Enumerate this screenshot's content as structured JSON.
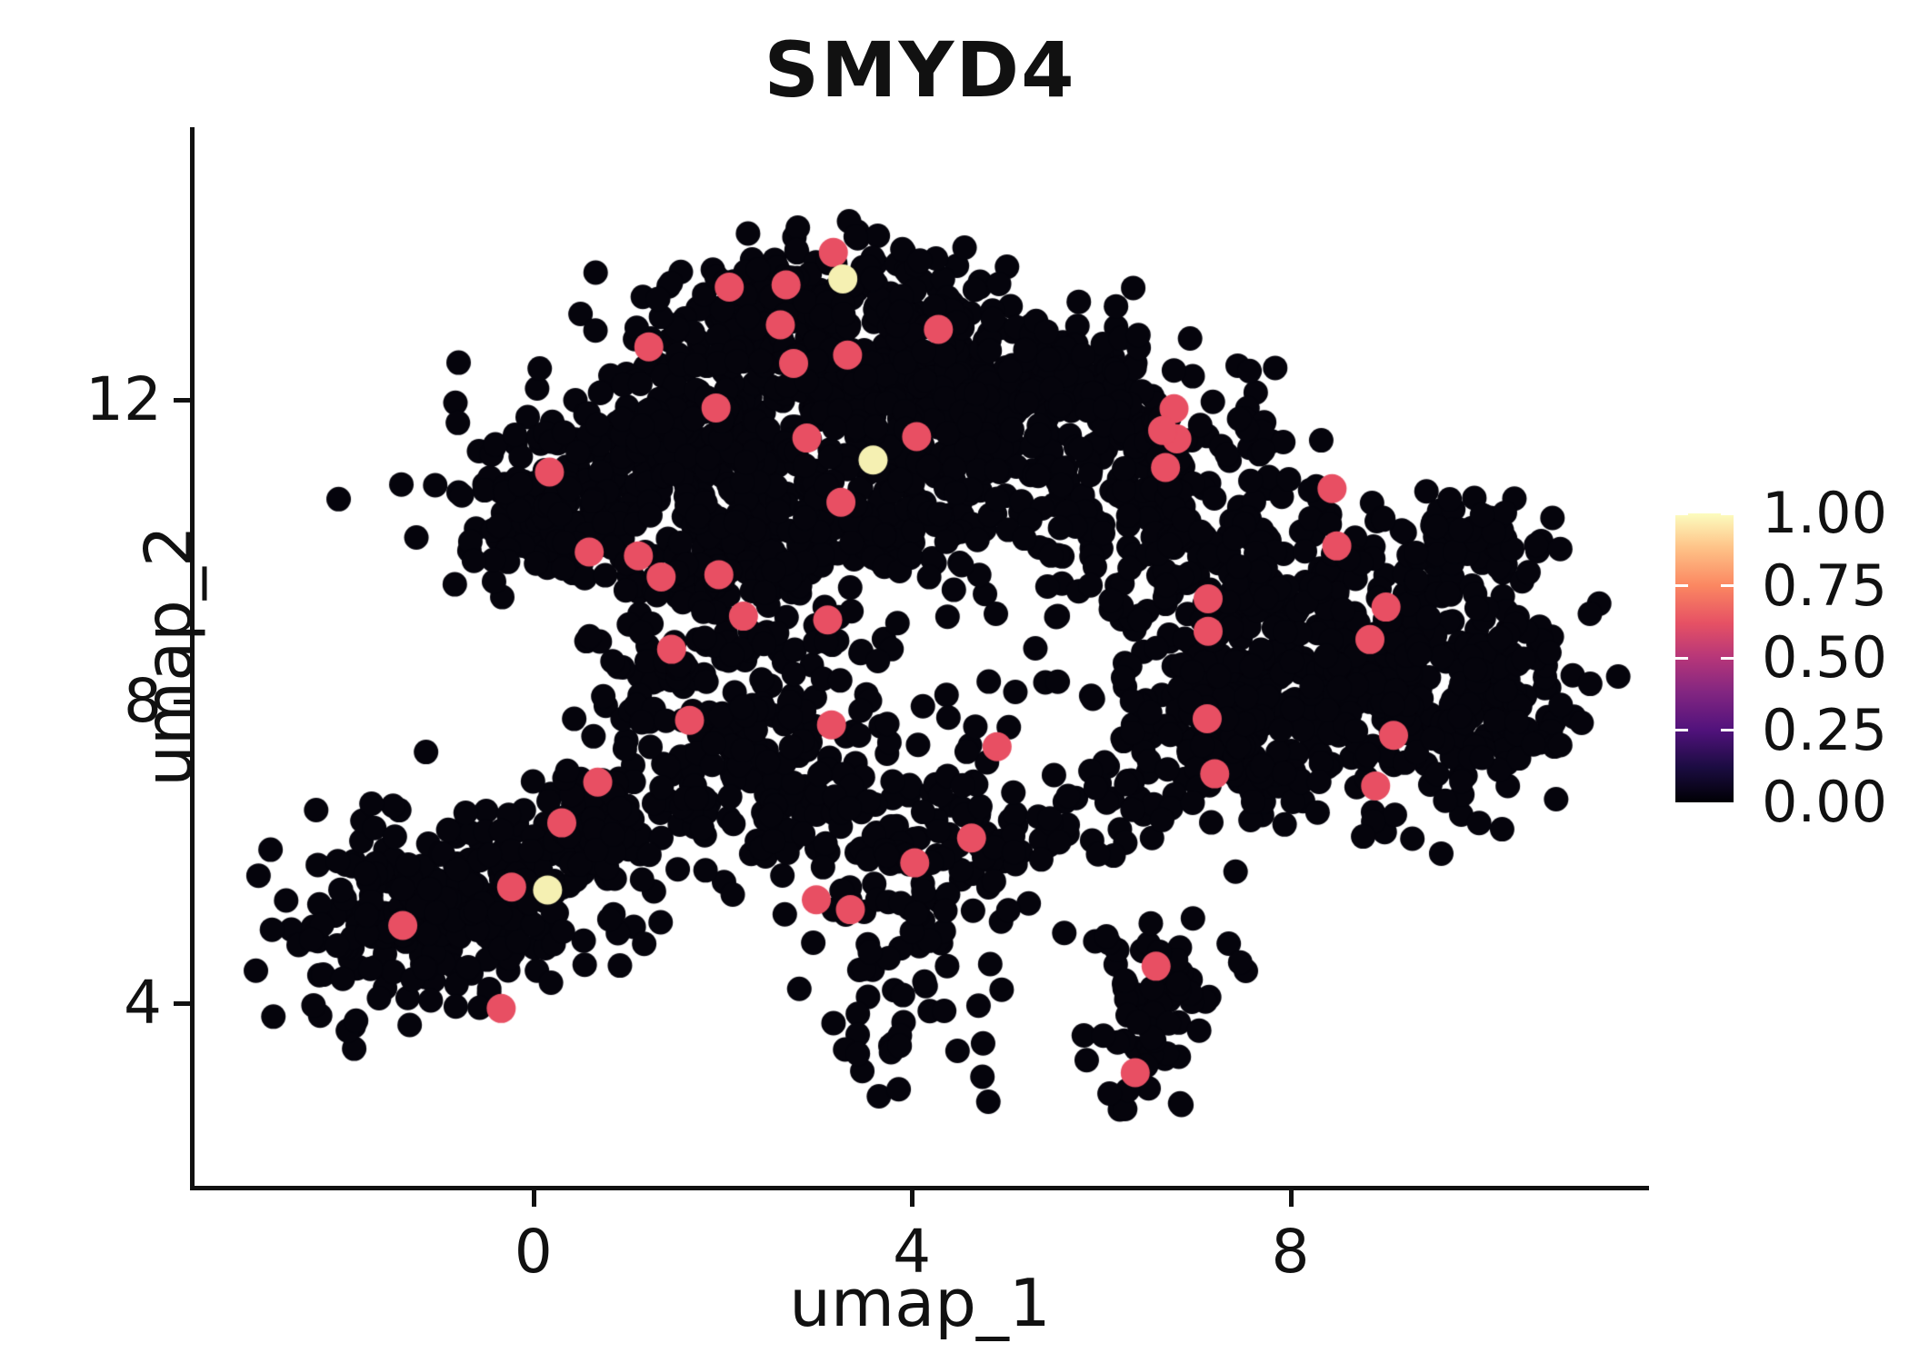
{
  "chart_data": {
    "type": "scatter",
    "title": "SMYD4",
    "xlabel": "umap_1",
    "ylabel": "umap_2",
    "x_ticks": [
      0,
      4,
      8
    ],
    "y_ticks": [
      4,
      8,
      12
    ],
    "x_range": [
      -3.6,
      11.77
    ],
    "y_range": [
      1.58,
      15.61
    ],
    "grid": false,
    "point_color_zero": "#05040c",
    "point_radius": 13.5,
    "highlight_radius": 16,
    "seed": 42,
    "clusters_note": "UMAP embedding of ~3000 cells; most cells have expression 0 (black). Clusters given as gaussian blobs: cx, cy, sx, sy, n.",
    "clusters": [
      {
        "cx": 3.0,
        "cy": 13.3,
        "sx": 0.85,
        "sy": 0.45,
        "n": 130
      },
      {
        "cx": 2.2,
        "cy": 12.2,
        "sx": 1.0,
        "sy": 0.75,
        "n": 190
      },
      {
        "cx": 3.9,
        "cy": 12.4,
        "sx": 0.9,
        "sy": 0.65,
        "n": 170
      },
      {
        "cx": 1.2,
        "cy": 11.2,
        "sx": 0.8,
        "sy": 0.65,
        "n": 150
      },
      {
        "cx": 0.1,
        "cy": 10.5,
        "sx": 0.5,
        "sy": 0.55,
        "n": 110
      },
      {
        "cx": 4.7,
        "cy": 11.5,
        "sx": 0.85,
        "sy": 0.85,
        "n": 200
      },
      {
        "cx": 6.0,
        "cy": 12.0,
        "sx": 0.7,
        "sy": 0.55,
        "n": 90
      },
      {
        "cx": 7.0,
        "cy": 11.3,
        "sx": 0.6,
        "sy": 0.7,
        "n": 40
      },
      {
        "cx": 2.0,
        "cy": 9.8,
        "sx": 0.75,
        "sy": 0.65,
        "n": 130
      },
      {
        "cx": 3.3,
        "cy": 10.4,
        "sx": 0.75,
        "sy": 0.75,
        "n": 130
      },
      {
        "cx": 1.8,
        "cy": 8.0,
        "sx": 0.55,
        "sy": 0.85,
        "n": 110
      },
      {
        "cx": 2.7,
        "cy": 6.9,
        "sx": 0.75,
        "sy": 0.75,
        "n": 110
      },
      {
        "cx": 4.2,
        "cy": 6.0,
        "sx": 0.65,
        "sy": 0.6,
        "n": 80
      },
      {
        "cx": 3.9,
        "cy": 3.9,
        "sx": 0.4,
        "sy": 0.65,
        "n": 40
      },
      {
        "cx": 5.6,
        "cy": 6.5,
        "sx": 0.75,
        "sy": 0.28,
        "n": 35
      },
      {
        "cx": 6.4,
        "cy": 10.5,
        "sx": 0.65,
        "sy": 0.65,
        "n": 55
      },
      {
        "cx": 7.6,
        "cy": 9.3,
        "sx": 0.95,
        "sy": 0.75,
        "n": 230
      },
      {
        "cx": 8.9,
        "cy": 8.2,
        "sx": 0.95,
        "sy": 0.85,
        "n": 270
      },
      {
        "cx": 7.3,
        "cy": 7.5,
        "sx": 0.65,
        "sy": 0.55,
        "n": 130
      },
      {
        "cx": 9.9,
        "cy": 10.15,
        "sx": 0.45,
        "sy": 0.3,
        "n": 60
      },
      {
        "cx": 10.2,
        "cy": 7.9,
        "sx": 0.45,
        "sy": 0.55,
        "n": 70
      },
      {
        "cx": -1.3,
        "cy": 5.0,
        "sx": 0.7,
        "sy": 0.6,
        "n": 180
      },
      {
        "cx": -0.1,
        "cy": 5.7,
        "sx": 0.65,
        "sy": 0.55,
        "n": 130
      },
      {
        "cx": 0.8,
        "cy": 6.4,
        "sx": 0.45,
        "sy": 0.4,
        "n": 50
      },
      {
        "cx": 6.6,
        "cy": 4.35,
        "sx": 0.4,
        "sy": 0.3,
        "n": 45
      },
      {
        "cx": 6.35,
        "cy": 3.3,
        "sx": 0.28,
        "sy": 0.4,
        "n": 32
      },
      {
        "cx": 3.5,
        "cy": 9.0,
        "sx": 2.6,
        "sy": 2.2,
        "n": 60
      },
      {
        "cx": 5.0,
        "cy": 7.5,
        "sx": 1.5,
        "sy": 1.0,
        "n": 30
      }
    ],
    "highlight_points": {
      "value": 0.7,
      "color": "#E84F63",
      "points": [
        [
          3.17,
          13.95
        ],
        [
          2.07,
          13.49
        ],
        [
          2.67,
          13.52
        ],
        [
          2.61,
          12.99
        ],
        [
          2.75,
          12.48
        ],
        [
          3.32,
          12.59
        ],
        [
          4.28,
          12.93
        ],
        [
          1.93,
          11.89
        ],
        [
          4.05,
          11.51
        ],
        [
          1.22,
          12.7
        ],
        [
          0.17,
          11.04
        ],
        [
          0.59,
          9.98
        ],
        [
          1.11,
          9.93
        ],
        [
          1.96,
          9.68
        ],
        [
          1.46,
          8.69
        ],
        [
          1.35,
          9.65
        ],
        [
          2.22,
          9.13
        ],
        [
          2.89,
          11.49
        ],
        [
          3.25,
          10.64
        ],
        [
          6.8,
          11.48
        ],
        [
          6.68,
          11.1
        ],
        [
          8.49,
          10.06
        ],
        [
          7.12,
          7.77
        ],
        [
          9.09,
          7.55
        ],
        [
          7.2,
          7.04
        ],
        [
          8.9,
          6.88
        ],
        [
          8.44,
          10.82
        ],
        [
          9.01,
          9.25
        ],
        [
          8.84,
          8.82
        ],
        [
          7.13,
          9.36
        ],
        [
          7.13,
          8.93
        ],
        [
          3.11,
          9.08
        ],
        [
          3.15,
          7.69
        ],
        [
          4.9,
          7.4
        ],
        [
          4.63,
          6.19
        ],
        [
          4.03,
          5.86
        ],
        [
          -0.23,
          5.54
        ],
        [
          -1.38,
          5.03
        ],
        [
          -0.34,
          3.93
        ],
        [
          0.3,
          6.39
        ],
        [
          0.68,
          6.93
        ],
        [
          1.65,
          7.75
        ],
        [
          6.58,
          4.49
        ],
        [
          6.36,
          3.08
        ],
        [
          6.77,
          11.88
        ],
        [
          6.65,
          11.59
        ],
        [
          2.99,
          5.37
        ],
        [
          3.35,
          5.24
        ]
      ]
    },
    "max_points": {
      "value": 1.0,
      "color": "#F5F0B2",
      "points": [
        [
          3.27,
          13.6
        ],
        [
          3.59,
          11.2
        ],
        [
          0.15,
          5.5
        ]
      ]
    },
    "legend": {
      "position": "right",
      "tick_labels": [
        "1.00",
        "0.75",
        "0.50",
        "0.25",
        "0.00"
      ],
      "tick_values": [
        1.0,
        0.75,
        0.5,
        0.25,
        0.0
      ],
      "colormap": "magma",
      "gradient_stops": [
        {
          "v": 0.0,
          "color": "#000004"
        },
        {
          "v": 0.12,
          "color": "#1B0C41"
        },
        {
          "v": 0.25,
          "color": "#51127C"
        },
        {
          "v": 0.38,
          "color": "#822681"
        },
        {
          "v": 0.5,
          "color": "#B63679"
        },
        {
          "v": 0.62,
          "color": "#E65164"
        },
        {
          "v": 0.75,
          "color": "#FB8761"
        },
        {
          "v": 0.88,
          "color": "#FEC287"
        },
        {
          "v": 1.0,
          "color": "#FCFDBF"
        }
      ]
    }
  }
}
